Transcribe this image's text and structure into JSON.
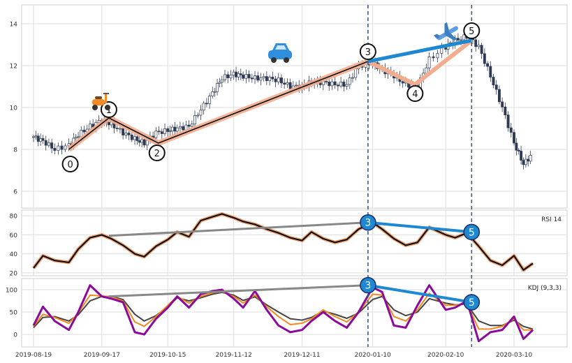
{
  "chart_data": {
    "type": "candlestick",
    "title": "",
    "x_tick_labels": [
      "2019-08-19",
      "2019-09-17",
      "2019-10-15",
      "2019-11-12",
      "2019-12-11",
      "2020-01-10",
      "2020-02-10",
      "2020-03-10"
    ],
    "dates": [
      "2019-08-19",
      "2019-08-23",
      "2019-08-28",
      "2019-09-03",
      "2019-09-07",
      "2019-09-12",
      "2019-09-17",
      "2019-09-21",
      "2019-09-26",
      "2019-10-01",
      "2019-10-05",
      "2019-10-10",
      "2019-10-15",
      "2019-10-19",
      "2019-10-24",
      "2019-10-29",
      "2019-11-03",
      "2019-11-07",
      "2019-11-12",
      "2019-11-16",
      "2019-11-21",
      "2019-11-26",
      "2019-12-01",
      "2019-12-06",
      "2019-12-11",
      "2019-12-15",
      "2019-12-20",
      "2019-12-25",
      "2019-12-30",
      "2020-01-04",
      "2020-01-10",
      "2020-01-14",
      "2020-01-19",
      "2020-01-24",
      "2020-01-29",
      "2020-02-03",
      "2020-02-10",
      "2020-02-14",
      "2020-02-19",
      "2020-02-24",
      "2020-02-29",
      "2020-03-05",
      "2020-03-10",
      "2020-03-14",
      "2020-03-18"
    ],
    "price": {
      "ylim": [
        5.2,
        14.9
      ],
      "yticks": [
        6,
        8,
        10,
        12,
        14
      ],
      "close": [
        8.6,
        8.4,
        8.0,
        8.2,
        8.7,
        9.1,
        9.4,
        9.2,
        8.8,
        8.5,
        8.3,
        8.8,
        8.9,
        9.0,
        9.1,
        9.9,
        10.7,
        11.4,
        11.6,
        11.5,
        11.4,
        11.4,
        11.3,
        11.0,
        11.0,
        11.2,
        11.2,
        11.1,
        11.1,
        12.0,
        12.1,
        11.8,
        11.5,
        11.1,
        11.0,
        12.3,
        12.9,
        13.2,
        13.4,
        12.9,
        11.5,
        10.0,
        8.3,
        7.3,
        7.8
      ]
    },
    "elliott_wave": {
      "labels": [
        "0",
        "1",
        "2",
        "3",
        "4",
        "5"
      ],
      "points": [
        {
          "label": "0",
          "date": "2019-09-03",
          "price": 8.0
        },
        {
          "label": "1",
          "date": "2019-09-20",
          "price": 9.5
        },
        {
          "label": "2",
          "date": "2019-10-11",
          "price": 8.3
        },
        {
          "label": "3",
          "date": "2020-01-08",
          "price": 12.2
        },
        {
          "label": "4",
          "date": "2020-01-28",
          "price": 11.1
        },
        {
          "label": "5",
          "date": "2020-02-21",
          "price": 13.2
        }
      ],
      "icons": [
        "scooter",
        "car",
        "airplane"
      ]
    },
    "divergence_markers": {
      "dates": [
        "2020-01-08",
        "2020-02-21"
      ],
      "labels": [
        "3",
        "5"
      ]
    },
    "rsi": {
      "label": "RSI 14",
      "ylim": [
        17,
        86
      ],
      "yticks": [
        20,
        40,
        60,
        80
      ],
      "values": [
        25,
        38,
        33,
        31,
        45,
        57,
        60,
        56,
        49,
        40,
        37,
        48,
        55,
        63,
        58,
        75,
        79,
        82,
        78,
        74,
        71,
        66,
        62,
        57,
        54,
        63,
        56,
        52,
        55,
        66,
        73,
        66,
        56,
        49,
        52,
        68,
        60,
        57,
        62,
        48,
        33,
        28,
        38,
        23,
        30
      ],
      "divergence": {
        "from": [
          "2019-09-20",
          59
        ],
        "to": [
          "2020-01-08",
          73
        ],
        "marker_values": [
          73,
          63
        ]
      }
    },
    "kdj": {
      "label": "KDJ (9,3,3)",
      "ylim": [
        -28,
        125
      ],
      "yticks": [
        0,
        50,
        100
      ],
      "J": [
        20,
        62,
        30,
        10,
        50,
        110,
        85,
        80,
        72,
        5,
        0,
        35,
        60,
        85,
        60,
        90,
        97,
        100,
        80,
        60,
        97,
        55,
        20,
        5,
        10,
        30,
        50,
        30,
        15,
        50,
        105,
        95,
        20,
        15,
        65,
        110,
        55,
        60,
        75,
        -15,
        5,
        10,
        40,
        -10,
        10
      ],
      "K": [
        18,
        45,
        38,
        25,
        48,
        88,
        86,
        84,
        75,
        28,
        18,
        40,
        65,
        85,
        70,
        85,
        93,
        96,
        85,
        70,
        88,
        62,
        40,
        22,
        25,
        35,
        55,
        40,
        28,
        50,
        90,
        88,
        40,
        30,
        55,
        92,
        65,
        65,
        70,
        12,
        12,
        18,
        35,
        10,
        10
      ],
      "D": [
        15,
        38,
        40,
        30,
        44,
        75,
        85,
        85,
        78,
        45,
        30,
        42,
        62,
        82,
        75,
        82,
        90,
        94,
        88,
        76,
        84,
        66,
        50,
        35,
        32,
        38,
        52,
        45,
        36,
        48,
        78,
        85,
        55,
        42,
        50,
        80,
        70,
        66,
        68,
        30,
        20,
        20,
        32,
        18,
        12
      ],
      "divergence": {
        "from": [
          "2019-09-20",
          85
        ],
        "to": [
          "2020-01-08",
          110
        ],
        "marker_values": [
          110,
          72
        ]
      }
    },
    "vertical_lines": [
      "2020-01-08",
      "2020-02-21"
    ],
    "grid": true
  }
}
